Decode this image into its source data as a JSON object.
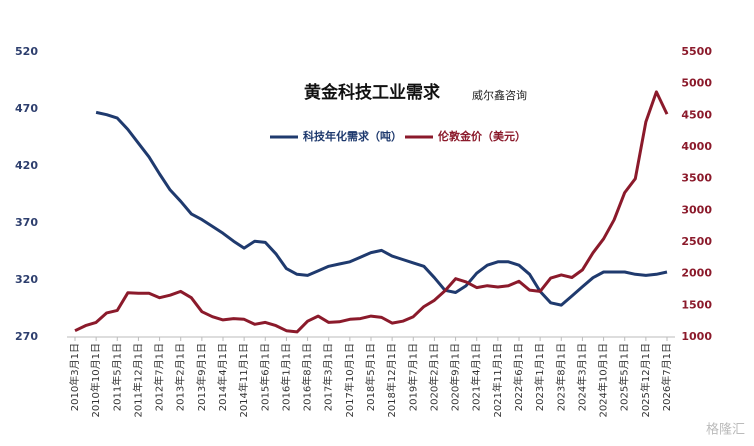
{
  "chart_data": {
    "type": "line",
    "title": "黄金科技工业需求",
    "subtitle": "威尔鑫咨询",
    "watermark": "格隆汇",
    "categories": [
      "2010年3月1日",
      null,
      "2010年10月1日",
      null,
      "2011年5月1日",
      null,
      "2011年12月1日",
      null,
      "2012年7月1日",
      null,
      "2013年2月1日",
      null,
      "2013年9月1日",
      null,
      "2014年4月1日",
      null,
      "2014年11月1日",
      null,
      "2015年6月1日",
      null,
      "2016年1月1日",
      null,
      "2016年8月1日",
      null,
      "2017年3月1日",
      null,
      "2017年10月1日",
      null,
      "2018年5月1日",
      null,
      "2018年12月1日",
      null,
      "2019年7月1日",
      null,
      "2020年2月1日",
      null,
      "2020年9月1日",
      null,
      "2021年4月1日",
      null,
      "2021年11月1日",
      null,
      "2022年6月1日",
      null,
      "2023年1月1日",
      null,
      "2023年8月1日",
      null,
      "2024年3月1日",
      null,
      "2024年10月1日",
      null,
      "2025年5月1日",
      null,
      "2025年12月1日",
      null,
      "2026年7月1日"
    ],
    "series": [
      {
        "name": "科技年化需求（吨）",
        "color": "#1f3a6e",
        "axis": "y",
        "values": [
          null,
          null,
          467,
          465,
          462,
          452,
          440,
          428,
          413,
          399,
          389,
          378,
          373,
          367,
          361,
          354,
          348,
          354,
          353,
          343,
          330,
          325,
          324,
          328,
          332,
          334,
          336,
          340,
          344,
          346,
          341,
          338,
          335,
          332,
          322,
          311,
          309,
          315,
          326,
          333,
          336,
          336,
          333,
          325,
          310,
          300,
          298,
          306,
          314,
          322,
          327,
          327,
          327,
          325,
          324,
          325,
          327
        ]
      },
      {
        "name": "伦敦金价（美元）",
        "color": "#8b1a2b",
        "axis": "y2",
        "values": [
          1100,
          1180,
          1230,
          1380,
          1420,
          1700,
          1690,
          1690,
          1620,
          1660,
          1720,
          1620,
          1400,
          1320,
          1270,
          1290,
          1280,
          1200,
          1230,
          1180,
          1100,
          1080,
          1250,
          1330,
          1230,
          1240,
          1280,
          1290,
          1330,
          1310,
          1220,
          1250,
          1320,
          1480,
          1580,
          1730,
          1920,
          1870,
          1780,
          1810,
          1790,
          1810,
          1880,
          1740,
          1720,
          1930,
          1980,
          1940,
          2060,
          2330,
          2550,
          2850,
          3280,
          3500,
          4400,
          4870,
          4520
        ]
      }
    ],
    "ylim": [
      270,
      520
    ],
    "yticks": [
      270,
      320,
      370,
      420,
      470,
      520
    ],
    "y2lim": [
      1000,
      5500
    ],
    "y2ticks": [
      1000,
      1500,
      2000,
      2500,
      3000,
      3500,
      4000,
      4500,
      5000,
      5500
    ],
    "grid": false
  }
}
